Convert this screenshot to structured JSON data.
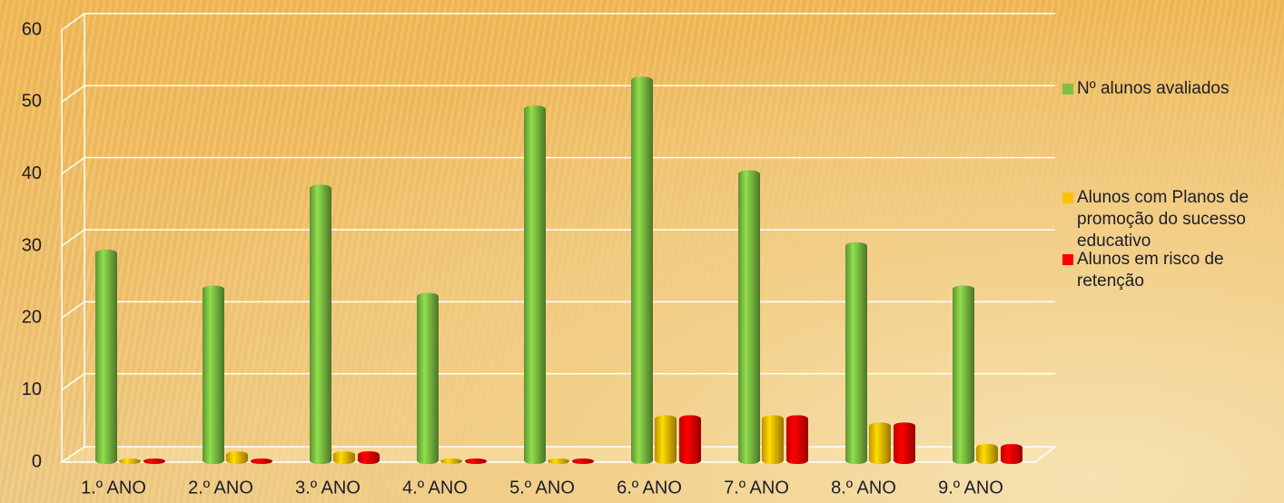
{
  "chart_data": {
    "type": "bar",
    "categories": [
      "1.º ANO",
      "2.º ANO",
      "3.º ANO",
      "4.º ANO",
      "5.º ANO",
      "6.º ANO",
      "7.º ANO",
      "8.º ANO",
      "9.º ANO"
    ],
    "series": [
      {
        "name": "Nº alunos avaliados",
        "color": "#7dc242",
        "values": [
          29,
          24,
          38,
          23,
          49,
          53,
          40,
          30,
          24
        ]
      },
      {
        "name": "Alunos com Planos de promoção do sucesso educativo",
        "color": "#ffc000",
        "values": [
          0,
          1,
          1,
          0,
          0,
          6,
          6,
          5,
          2
        ]
      },
      {
        "name": "Alunos em risco de retenção",
        "color": "#ff0000",
        "values": [
          0,
          0,
          1,
          0,
          0,
          6,
          6,
          5,
          2
        ]
      }
    ],
    "ylim": [
      0,
      60
    ],
    "yticks": [
      0,
      10,
      20,
      30,
      40,
      50,
      60
    ],
    "grid": true,
    "legend": "right"
  }
}
